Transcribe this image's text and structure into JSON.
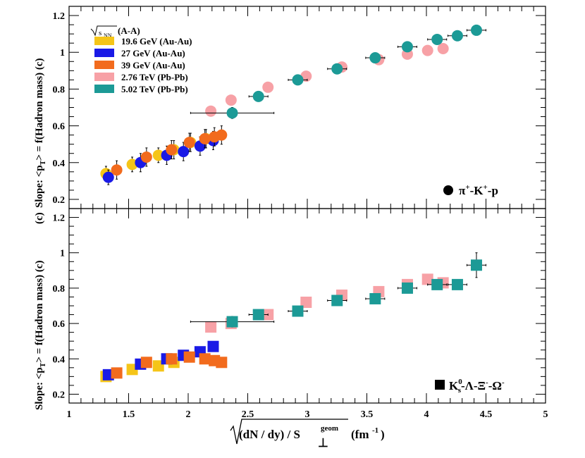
{
  "figure": {
    "x_axis_label_main": "(dN / dy) / S",
    "x_axis_label_sup": "geom",
    "x_axis_label_perp": "⊥",
    "x_axis_label_units": "(fm",
    "x_axis_label_units_sup": "-1",
    "x_axis_label_close": ")",
    "colors": {
      "gev196": "#f5c518",
      "gev27": "#1a1ae6",
      "gev39": "#f26b1d",
      "tev276": "#f7a1a6",
      "tev502": "#1c9a96"
    }
  },
  "chart_data": [
    {
      "type": "scatter",
      "panel": "top",
      "ylabel": "Slope: <p_T> = f(Hadron mass) (c)",
      "ylabel_parts": {
        "pre": "Slope: <p",
        "sub": "T",
        "post": "> = f(Hadron mass) (c)"
      },
      "overlap_label": "(c)",
      "xlim": [
        1,
        5
      ],
      "ylim": [
        0.15,
        1.25
      ],
      "xticks": [
        1,
        1.5,
        2,
        2.5,
        3,
        3.5,
        4,
        4.5,
        5
      ],
      "xtick_labels": [
        "1",
        "1.5",
        "2",
        "2.5",
        "3",
        "3.5",
        "4",
        "4.5",
        "5"
      ],
      "yticks": [
        0.2,
        0.4,
        0.6,
        0.8,
        1,
        1.2
      ],
      "ytick_labels": [
        "0.2",
        "0.4",
        "0.6",
        "0.8",
        "1",
        "1.2"
      ],
      "marker": "circle",
      "annotation": {
        "symbol": "●",
        "text_parts": [
          "π",
          "+",
          "-K",
          "+",
          "-p"
        ]
      },
      "legend": {
        "header": "(A-A)",
        "header_sqrt": "s",
        "header_sqrt_sub": "NN",
        "placement": "top-left",
        "entries": [
          "19.6 GeV (Au-Au)",
          "27 GeV (Au-Au)",
          "39 GeV (Au-Au)",
          "2.76 TeV (Pb-Pb)",
          "5.02 TeV (Pb-Pb)"
        ]
      },
      "series": [
        {
          "name": "19.6 GeV (Au-Au)",
          "color_key": "gev196",
          "x": [
            1.31,
            1.53,
            1.75,
            1.88,
            2.02,
            2.15
          ],
          "y": [
            0.34,
            0.39,
            0.44,
            0.47,
            0.51,
            0.53
          ],
          "err": [
            0.04,
            0.04,
            0.04,
            0.05,
            0.05,
            0.05
          ]
        },
        {
          "name": "27 GeV (Au-Au)",
          "color_key": "gev27",
          "x": [
            1.33,
            1.6,
            1.82,
            1.96,
            2.1,
            2.21
          ],
          "y": [
            0.32,
            0.4,
            0.44,
            0.46,
            0.49,
            0.52
          ],
          "err": [
            0.04,
            0.05,
            0.05,
            0.05,
            0.05,
            0.05
          ]
        },
        {
          "name": "39 GeV (Au-Au)",
          "color_key": "gev39",
          "x": [
            1.4,
            1.65,
            1.86,
            2.01,
            2.14,
            2.22,
            2.28
          ],
          "y": [
            0.36,
            0.43,
            0.47,
            0.51,
            0.53,
            0.54,
            0.55
          ],
          "err": [
            0.05,
            0.05,
            0.05,
            0.05,
            0.05,
            0.05,
            0.05
          ]
        },
        {
          "name": "2.76 TeV (Pb-Pb)",
          "color_key": "tev276",
          "x": [
            2.19,
            2.36,
            2.67,
            2.99,
            3.29,
            3.6,
            3.84,
            4.01,
            4.14
          ],
          "y": [
            0.68,
            0.74,
            0.81,
            0.87,
            0.92,
            0.96,
            0.99,
            1.01,
            1.02
          ],
          "xerr": [
            0.04,
            0.03,
            0.03,
            0.04,
            0.04,
            0.04,
            0.04,
            0.04,
            0.04
          ],
          "err": [
            0.02,
            0.02,
            0.02,
            0.02,
            0.02,
            0.02,
            0.02,
            0.02,
            0.02
          ]
        },
        {
          "name": "5.02 TeV (Pb-Pb)",
          "color_key": "tev502",
          "x": [
            2.37,
            2.59,
            2.92,
            3.25,
            3.57,
            3.84,
            4.09,
            4.26,
            4.42
          ],
          "y": [
            0.67,
            0.76,
            0.85,
            0.91,
            0.97,
            1.03,
            1.07,
            1.09,
            1.12
          ],
          "xerr": [
            0.35,
            0.08,
            0.08,
            0.08,
            0.08,
            0.08,
            0.08,
            0.08,
            0.08
          ],
          "err": [
            0.03,
            0.02,
            0.02,
            0.02,
            0.02,
            0.02,
            0.02,
            0.02,
            0.02
          ]
        }
      ]
    },
    {
      "type": "scatter",
      "panel": "bottom",
      "ylabel": "Slope: <p_T> = f(Hadron mass) (c)",
      "ylabel_parts": {
        "pre": "Slope: <p",
        "sub": "T",
        "post": "> = f(Hadron mass) (c)"
      },
      "xlim": [
        1,
        5
      ],
      "ylim": [
        0.15,
        1.25
      ],
      "xticks": [
        1,
        1.5,
        2,
        2.5,
        3,
        3.5,
        4,
        4.5,
        5
      ],
      "xtick_labels": [
        "1",
        "1.5",
        "2",
        "2.5",
        "3",
        "3.5",
        "4",
        "4.5",
        "5"
      ],
      "yticks": [
        0.2,
        0.4,
        0.6,
        0.8,
        1,
        1.2
      ],
      "ytick_labels": [
        "0.2",
        "0.4",
        "0.6",
        "0.8",
        "1",
        "1.2"
      ],
      "marker": "square",
      "annotation": {
        "symbol": "■",
        "text_parts": [
          "K",
          "0",
          "s",
          "-Λ-Ξ",
          "-",
          "-Ω",
          "-"
        ]
      },
      "series": [
        {
          "name": "19.6 GeV (Au-Au)",
          "color_key": "gev196",
          "x": [
            1.31,
            1.53,
            1.75,
            1.88
          ],
          "y": [
            0.3,
            0.34,
            0.36,
            0.38
          ],
          "err": [
            0.01,
            0.01,
            0.01,
            0.01
          ]
        },
        {
          "name": "27 GeV (Au-Au)",
          "color_key": "gev27",
          "x": [
            1.33,
            1.6,
            1.82,
            1.96,
            2.1,
            2.21
          ],
          "y": [
            0.31,
            0.37,
            0.4,
            0.42,
            0.44,
            0.47
          ],
          "err": [
            0.01,
            0.01,
            0.01,
            0.01,
            0.01,
            0.01
          ]
        },
        {
          "name": "39 GeV (Au-Au)",
          "color_key": "gev39",
          "x": [
            1.4,
            1.65,
            1.86,
            2.01,
            2.14,
            2.22,
            2.28
          ],
          "y": [
            0.32,
            0.38,
            0.4,
            0.41,
            0.4,
            0.39,
            0.38
          ],
          "err": [
            0.01,
            0.01,
            0.01,
            0.01,
            0.01,
            0.01,
            0.01
          ]
        },
        {
          "name": "2.76 TeV (Pb-Pb)",
          "color_key": "tev276",
          "x": [
            2.19,
            2.36,
            2.67,
            2.99,
            3.29,
            3.6,
            3.84,
            4.01,
            4.14
          ],
          "y": [
            0.58,
            0.6,
            0.65,
            0.72,
            0.76,
            0.78,
            0.82,
            0.85,
            0.83
          ],
          "xerr": [
            0.04,
            0.03,
            0.03,
            0.04,
            0.04,
            0.04,
            0.04,
            0.04,
            0.04
          ],
          "err": [
            0.02,
            0.02,
            0.02,
            0.02,
            0.02,
            0.02,
            0.02,
            0.02,
            0.02
          ]
        },
        {
          "name": "5.02 TeV (Pb-Pb)",
          "color_key": "tev502",
          "x": [
            2.37,
            2.59,
            2.92,
            3.25,
            3.57,
            3.84,
            4.09,
            4.26,
            4.42
          ],
          "y": [
            0.61,
            0.65,
            0.67,
            0.73,
            0.74,
            0.8,
            0.82,
            0.82,
            0.93
          ],
          "xerr": [
            0.35,
            0.08,
            0.08,
            0.08,
            0.08,
            0.08,
            0.08,
            0.08,
            0.08
          ],
          "err": [
            0.03,
            0.02,
            0.02,
            0.02,
            0.02,
            0.02,
            0.02,
            0.02,
            0.07
          ]
        }
      ]
    }
  ]
}
